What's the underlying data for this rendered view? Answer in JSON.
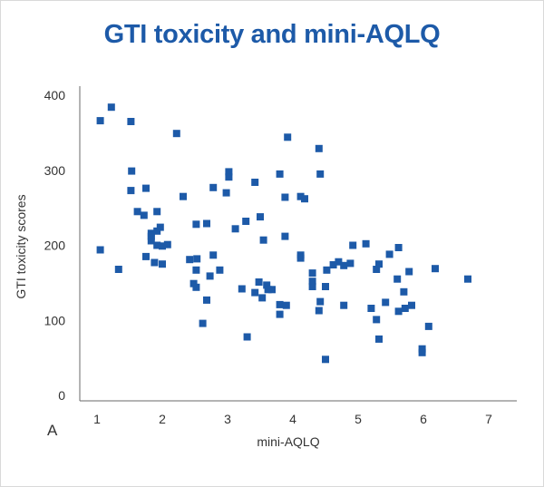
{
  "chart_data": {
    "type": "scatter",
    "title": "GTI toxicity and mini-AQLQ",
    "xlabel": "mini-AQLQ",
    "ylabel": "GTI toxicity scores",
    "panel_label": "A",
    "xlim": [
      0.75,
      7.25
    ],
    "ylim": [
      0,
      400
    ],
    "xticks": [
      "1",
      "2",
      "3",
      "4",
      "5",
      "6",
      "7"
    ],
    "yticks": [
      "0",
      "100",
      "200",
      "300",
      "400"
    ],
    "grid": false,
    "marker_color": "#1d5aa8",
    "points": [
      {
        "x": 1.05,
        "y": 366
      },
      {
        "x": 1.22,
        "y": 384
      },
      {
        "x": 1.52,
        "y": 365
      },
      {
        "x": 2.22,
        "y": 349
      },
      {
        "x": 1.53,
        "y": 299
      },
      {
        "x": 1.52,
        "y": 273
      },
      {
        "x": 1.75,
        "y": 276
      },
      {
        "x": 1.05,
        "y": 194
      },
      {
        "x": 1.33,
        "y": 168
      },
      {
        "x": 1.62,
        "y": 245
      },
      {
        "x": 1.72,
        "y": 240
      },
      {
        "x": 1.75,
        "y": 185
      },
      {
        "x": 1.83,
        "y": 216
      },
      {
        "x": 1.83,
        "y": 212
      },
      {
        "x": 1.83,
        "y": 206
      },
      {
        "x": 1.92,
        "y": 245
      },
      {
        "x": 1.92,
        "y": 219
      },
      {
        "x": 1.97,
        "y": 224
      },
      {
        "x": 1.92,
        "y": 200
      },
      {
        "x": 2.0,
        "y": 199
      },
      {
        "x": 2.08,
        "y": 201
      },
      {
        "x": 1.88,
        "y": 177
      },
      {
        "x": 2.0,
        "y": 175
      },
      {
        "x": 2.32,
        "y": 265
      },
      {
        "x": 2.52,
        "y": 228
      },
      {
        "x": 2.68,
        "y": 229
      },
      {
        "x": 2.42,
        "y": 181
      },
      {
        "x": 2.53,
        "y": 182
      },
      {
        "x": 2.52,
        "y": 167
      },
      {
        "x": 2.48,
        "y": 149
      },
      {
        "x": 2.52,
        "y": 144
      },
      {
        "x": 2.78,
        "y": 187
      },
      {
        "x": 2.73,
        "y": 159
      },
      {
        "x": 2.68,
        "y": 127
      },
      {
        "x": 2.62,
        "y": 96
      },
      {
        "x": 2.78,
        "y": 277
      },
      {
        "x": 2.98,
        "y": 270
      },
      {
        "x": 3.02,
        "y": 298
      },
      {
        "x": 3.02,
        "y": 291
      },
      {
        "x": 3.12,
        "y": 222
      },
      {
        "x": 2.88,
        "y": 167
      },
      {
        "x": 3.28,
        "y": 232
      },
      {
        "x": 3.42,
        "y": 284
      },
      {
        "x": 3.5,
        "y": 238
      },
      {
        "x": 3.55,
        "y": 207
      },
      {
        "x": 3.22,
        "y": 142
      },
      {
        "x": 3.42,
        "y": 137
      },
      {
        "x": 3.48,
        "y": 151
      },
      {
        "x": 3.53,
        "y": 130
      },
      {
        "x": 3.6,
        "y": 147
      },
      {
        "x": 3.62,
        "y": 141
      },
      {
        "x": 3.68,
        "y": 141
      },
      {
        "x": 3.3,
        "y": 78
      },
      {
        "x": 3.8,
        "y": 295
      },
      {
        "x": 3.88,
        "y": 264
      },
      {
        "x": 3.92,
        "y": 344
      },
      {
        "x": 3.88,
        "y": 212
      },
      {
        "x": 4.12,
        "y": 265
      },
      {
        "x": 4.18,
        "y": 262
      },
      {
        "x": 4.12,
        "y": 187
      },
      {
        "x": 4.12,
        "y": 183
      },
      {
        "x": 3.8,
        "y": 121
      },
      {
        "x": 3.9,
        "y": 120
      },
      {
        "x": 3.8,
        "y": 108
      },
      {
        "x": 4.4,
        "y": 329
      },
      {
        "x": 4.42,
        "y": 295
      },
      {
        "x": 4.3,
        "y": 163
      },
      {
        "x": 4.3,
        "y": 152
      },
      {
        "x": 4.3,
        "y": 145
      },
      {
        "x": 4.42,
        "y": 125
      },
      {
        "x": 4.4,
        "y": 113
      },
      {
        "x": 4.5,
        "y": 145
      },
      {
        "x": 4.52,
        "y": 167
      },
      {
        "x": 4.62,
        "y": 174
      },
      {
        "x": 4.7,
        "y": 178
      },
      {
        "x": 4.78,
        "y": 173
      },
      {
        "x": 4.88,
        "y": 176
      },
      {
        "x": 4.5,
        "y": 48
      },
      {
        "x": 4.78,
        "y": 120
      },
      {
        "x": 4.92,
        "y": 200
      },
      {
        "x": 5.12,
        "y": 202
      },
      {
        "x": 5.2,
        "y": 116
      },
      {
        "x": 5.28,
        "y": 168
      },
      {
        "x": 5.32,
        "y": 175
      },
      {
        "x": 5.42,
        "y": 124
      },
      {
        "x": 5.48,
        "y": 188
      },
      {
        "x": 5.28,
        "y": 101
      },
      {
        "x": 5.32,
        "y": 75
      },
      {
        "x": 5.62,
        "y": 197
      },
      {
        "x": 5.6,
        "y": 155
      },
      {
        "x": 5.7,
        "y": 138
      },
      {
        "x": 5.62,
        "y": 112
      },
      {
        "x": 5.72,
        "y": 116
      },
      {
        "x": 5.78,
        "y": 165
      },
      {
        "x": 5.82,
        "y": 120
      },
      {
        "x": 5.98,
        "y": 62
      },
      {
        "x": 5.98,
        "y": 57
      },
      {
        "x": 6.08,
        "y": 92
      },
      {
        "x": 6.18,
        "y": 169
      },
      {
        "x": 6.68,
        "y": 155
      }
    ]
  }
}
